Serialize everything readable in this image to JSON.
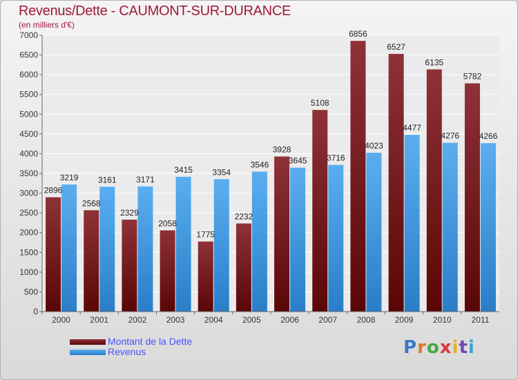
{
  "chart_data": {
    "type": "bar",
    "title": "Revenus/Dette - CAUMONT-SUR-DURANCE",
    "subtitle": "(en milliers d'€)",
    "categories": [
      "2000",
      "2001",
      "2002",
      "2003",
      "2004",
      "2005",
      "2006",
      "2007",
      "2008",
      "2009",
      "2010",
      "2011"
    ],
    "series": [
      {
        "name": "Montant de la Dette",
        "color": "#7a1c22",
        "values": [
          2896,
          2568,
          2329,
          2058,
          1775,
          2232,
          3928,
          5108,
          6856,
          6527,
          6135,
          5782
        ]
      },
      {
        "name": "Revenus",
        "color": "#3d9de6",
        "values": [
          3219,
          3161,
          3171,
          3415,
          3354,
          3546,
          3645,
          3716,
          4023,
          4477,
          4276,
          4266
        ]
      }
    ],
    "yticks": [
      0,
      500,
      1000,
      1500,
      2000,
      2500,
      3000,
      3500,
      4000,
      4500,
      5000,
      5500,
      6000,
      6500,
      7000
    ],
    "ylim": [
      0,
      7000
    ],
    "grid": true,
    "legend": "bottom-left"
  },
  "logo": {
    "letters": [
      "P",
      "r",
      "o",
      "x",
      "i",
      "t",
      "i"
    ],
    "colors": [
      "#3a78c8",
      "#e07828",
      "#48a848",
      "#d83c3c",
      "#e8b020",
      "#7048b0",
      "#38a8c8"
    ]
  }
}
